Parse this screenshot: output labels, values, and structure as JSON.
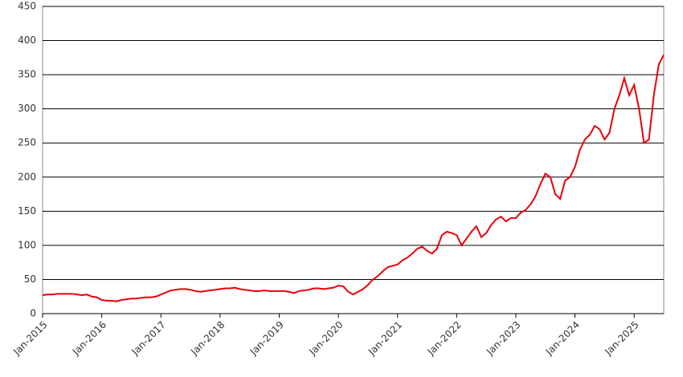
{
  "chart_data": {
    "type": "line",
    "x": [
      "2015-01",
      "2015-02",
      "2015-03",
      "2015-04",
      "2015-05",
      "2015-06",
      "2015-07",
      "2015-08",
      "2015-09",
      "2015-10",
      "2015-11",
      "2015-12",
      "2016-01",
      "2016-02",
      "2016-03",
      "2016-04",
      "2016-05",
      "2016-06",
      "2016-07",
      "2016-08",
      "2016-09",
      "2016-10",
      "2016-11",
      "2016-12",
      "2017-01",
      "2017-02",
      "2017-03",
      "2017-04",
      "2017-05",
      "2017-06",
      "2017-07",
      "2017-08",
      "2017-09",
      "2017-10",
      "2017-11",
      "2017-12",
      "2018-01",
      "2018-02",
      "2018-03",
      "2018-04",
      "2018-05",
      "2018-06",
      "2018-07",
      "2018-08",
      "2018-09",
      "2018-10",
      "2018-11",
      "2018-12",
      "2019-01",
      "2019-02",
      "2019-03",
      "2019-04",
      "2019-05",
      "2019-06",
      "2019-07",
      "2019-08",
      "2019-09",
      "2019-10",
      "2019-11",
      "2019-12",
      "2020-01",
      "2020-02",
      "2020-03",
      "2020-04",
      "2020-05",
      "2020-06",
      "2020-07",
      "2020-08",
      "2020-09",
      "2020-10",
      "2020-11",
      "2020-12",
      "2021-01",
      "2021-02",
      "2021-03",
      "2021-04",
      "2021-05",
      "2021-06",
      "2021-07",
      "2021-08",
      "2021-09",
      "2021-10",
      "2021-11",
      "2021-12",
      "2022-01",
      "2022-02",
      "2022-03",
      "2022-04",
      "2022-05",
      "2022-06",
      "2022-07",
      "2022-08",
      "2022-09",
      "2022-10",
      "2022-11",
      "2022-12",
      "2023-01",
      "2023-02",
      "2023-03",
      "2023-04",
      "2023-05",
      "2023-06",
      "2023-07",
      "2023-08",
      "2023-09",
      "2023-10",
      "2023-11",
      "2023-12",
      "2024-01",
      "2024-02",
      "2024-03",
      "2024-04",
      "2024-05",
      "2024-06",
      "2024-07",
      "2024-08",
      "2024-09",
      "2024-10",
      "2024-11",
      "2024-12",
      "2025-01",
      "2025-02",
      "2025-03",
      "2025-04",
      "2025-05",
      "2025-06",
      "2025-07"
    ],
    "series": [
      {
        "color": "#e8000a",
        "values": [
          27,
          28,
          28,
          29,
          29,
          29,
          29,
          28,
          27,
          28,
          25,
          24,
          20,
          19,
          19,
          18,
          20,
          21,
          22,
          22,
          23,
          24,
          24,
          25,
          28,
          31,
          34,
          35,
          36,
          36,
          35,
          33,
          32,
          33,
          34,
          35,
          36,
          37,
          37,
          38,
          36,
          35,
          34,
          33,
          33,
          34,
          33,
          33,
          33,
          33,
          32,
          30,
          33,
          34,
          35,
          37,
          37,
          36,
          37,
          38,
          41,
          40,
          32,
          28,
          32,
          36,
          42,
          50,
          55,
          62,
          68,
          70,
          72,
          78,
          82,
          88,
          95,
          98,
          92,
          88,
          95,
          115,
          120,
          118,
          115,
          100,
          110,
          120,
          128,
          112,
          118,
          130,
          138,
          142,
          135,
          140,
          140,
          148,
          152,
          160,
          172,
          190,
          205,
          200,
          175,
          168,
          195,
          200,
          215,
          240,
          255,
          262,
          275,
          270,
          255,
          265,
          300,
          320,
          345,
          320,
          335,
          300,
          250,
          255,
          320,
          365,
          379
        ]
      }
    ],
    "xlim": [
      "2015-01",
      "2025-07"
    ],
    "xticks": [
      {
        "value": "2015-01",
        "label": "Jan-2015"
      },
      {
        "value": "2016-01",
        "label": "Jan-2016"
      },
      {
        "value": "2017-01",
        "label": "Jan-2017"
      },
      {
        "value": "2018-01",
        "label": "Jan-2018"
      },
      {
        "value": "2019-01",
        "label": "Jan-2019"
      },
      {
        "value": "2020-01",
        "label": "Jan-2020"
      },
      {
        "value": "2021-01",
        "label": "Jan-2021"
      },
      {
        "value": "2022-01",
        "label": "Jan-2022"
      },
      {
        "value": "2023-01",
        "label": "Jan-2023"
      },
      {
        "value": "2024-01",
        "label": "Jan-2024"
      },
      {
        "value": "2025-01",
        "label": "Jan-2025"
      }
    ],
    "ylim": [
      0,
      450
    ],
    "yticks": [
      0,
      50,
      100,
      150,
      200,
      250,
      300,
      350,
      400,
      450
    ],
    "grid": true
  }
}
